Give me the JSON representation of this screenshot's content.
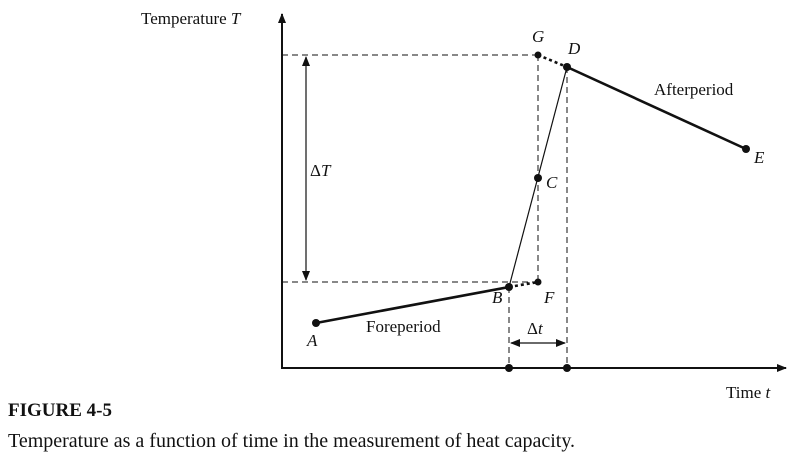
{
  "figure": {
    "y_axis": {
      "label": "Temperature",
      "symbol": "T"
    },
    "x_axis": {
      "label": "Time",
      "symbol": "t"
    },
    "points": {
      "A": "A",
      "B": "B",
      "C": "C",
      "D": "D",
      "E": "E",
      "F": "F",
      "G": "G"
    },
    "delta_T": {
      "prefix": "Δ",
      "symbol": "T"
    },
    "delta_t": {
      "prefix": "Δ",
      "symbol": "t"
    },
    "foreperiod": "Foreperiod",
    "afterperiod": "Afterperiod"
  },
  "caption": {
    "number": "FIGURE 4-5",
    "text": "Temperature as a function of time in the measurement of heat capacity."
  }
}
